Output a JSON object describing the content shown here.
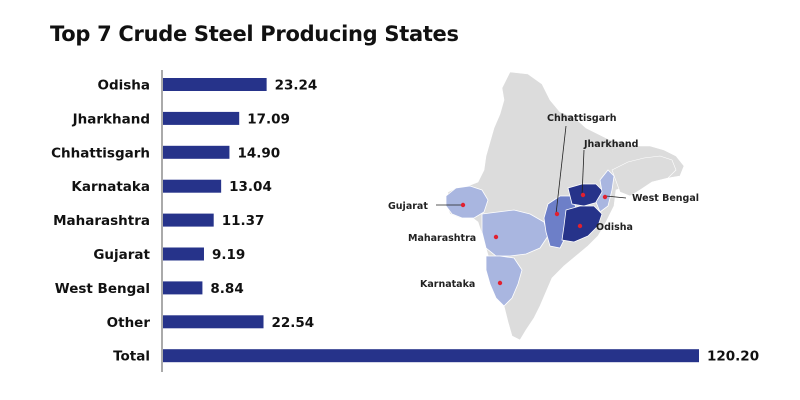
{
  "chart_data": {
    "type": "bar",
    "orientation": "horizontal",
    "title": "Top 7 Crude Steel Producing States",
    "categories": [
      "Odisha",
      "Jharkhand",
      "Chhattisgarh",
      "Karnataka",
      "Maharashtra",
      "Gujarat",
      "West Bengal",
      "Other",
      "Total"
    ],
    "values": [
      23.24,
      17.09,
      14.9,
      13.04,
      11.37,
      9.19,
      8.84,
      22.54,
      120.2
    ],
    "value_labels": [
      "23.24",
      "17.09",
      "14.90",
      "13.04",
      "11.37",
      "9.19",
      "8.84",
      "22.54",
      "120.20"
    ],
    "xlim": [
      0,
      120.2
    ],
    "grid": false,
    "bar_color": "#26338a"
  },
  "map": {
    "labels": [
      "Chhattisgarh",
      "Jharkhand",
      "Gujarat",
      "West Bengal",
      "Maharashtra",
      "Odisha",
      "Karnataka"
    ],
    "colors": {
      "base": "#dcdcdc",
      "light": "#a9b6e0",
      "medium": "#6d7fc8",
      "dark": "#26338a",
      "marker": "#e02030"
    }
  }
}
